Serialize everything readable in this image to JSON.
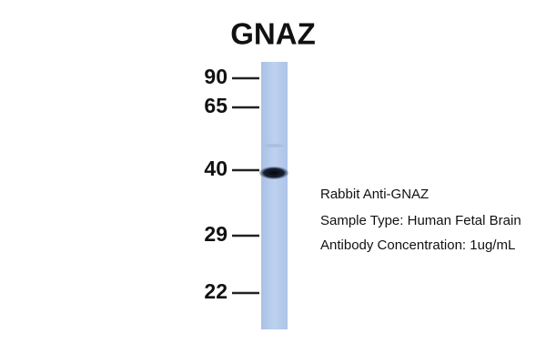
{
  "title": "GNAZ",
  "markers": [
    "90",
    "65",
    "40",
    "29",
    "22"
  ],
  "notes": [
    "Rabbit Anti-GNAZ",
    "Sample Type: Human Fetal Brain",
    "Antibody Concentration: 1ug/mL"
  ]
}
